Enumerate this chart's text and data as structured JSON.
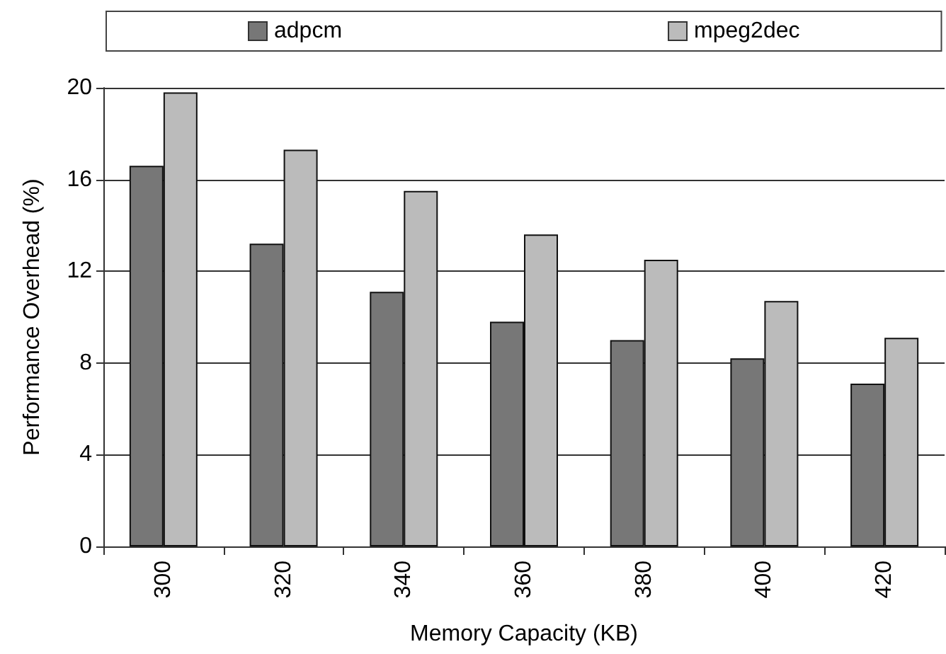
{
  "chart_data": {
    "type": "bar",
    "xlabel": "Memory Capacity (KB)",
    "ylabel": "Performance Overhead (%)",
    "categories": [
      "300",
      "320",
      "340",
      "360",
      "380",
      "400",
      "420"
    ],
    "series": [
      {
        "name": "adpcm",
        "color": "#777777",
        "values": [
          16.6,
          13.2,
          11.1,
          9.8,
          9.0,
          8.2,
          7.1
        ]
      },
      {
        "name": "mpeg2dec",
        "color": "#bbbbbb",
        "values": [
          19.8,
          17.3,
          15.5,
          13.6,
          12.5,
          10.7,
          9.1
        ]
      }
    ],
    "ylim": [
      0,
      20
    ],
    "yticks": [
      0,
      4,
      8,
      12,
      16,
      20
    ],
    "grid": "y",
    "legend": "top"
  }
}
